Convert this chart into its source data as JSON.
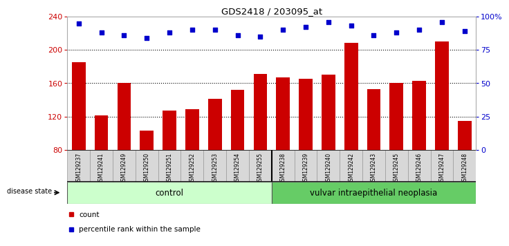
{
  "title": "GDS2418 / 203095_at",
  "samples": [
    "GSM129237",
    "GSM129241",
    "GSM129249",
    "GSM129250",
    "GSM129251",
    "GSM129252",
    "GSM129253",
    "GSM129254",
    "GSM129255",
    "GSM129238",
    "GSM129239",
    "GSM129240",
    "GSM129242",
    "GSM129243",
    "GSM129245",
    "GSM129246",
    "GSM129247",
    "GSM129248"
  ],
  "counts": [
    185,
    121,
    160,
    103,
    127,
    129,
    141,
    152,
    171,
    167,
    165,
    170,
    208,
    153,
    160,
    163,
    210,
    115
  ],
  "percentiles": [
    95,
    88,
    86,
    84,
    88,
    90,
    90,
    86,
    85,
    90,
    92,
    96,
    93,
    86,
    88,
    90,
    96,
    89
  ],
  "ylim_left": [
    80,
    240
  ],
  "ylim_right": [
    0,
    100
  ],
  "yticks_left": [
    80,
    120,
    160,
    200,
    240
  ],
  "yticks_right": [
    0,
    25,
    50,
    75,
    100
  ],
  "ytick_labels_right": [
    "0",
    "25",
    "50",
    "75",
    "100%"
  ],
  "bar_color": "#CC0000",
  "dot_color": "#0000CC",
  "grid_color": "#000000",
  "control_count": 9,
  "neoplasia_count": 9,
  "control_label": "control",
  "neoplasia_label": "vulvar intraepithelial neoplasia",
  "disease_state_label": "disease state",
  "legend_count_label": "count",
  "legend_pct_label": "percentile rank within the sample",
  "control_bg": "#CCFFCC",
  "neoplasia_bg": "#66CC66",
  "xticklabel_bg": "#D8D8D8",
  "background_color": "#FFFFFF",
  "plot_bg": "#FFFFFF"
}
